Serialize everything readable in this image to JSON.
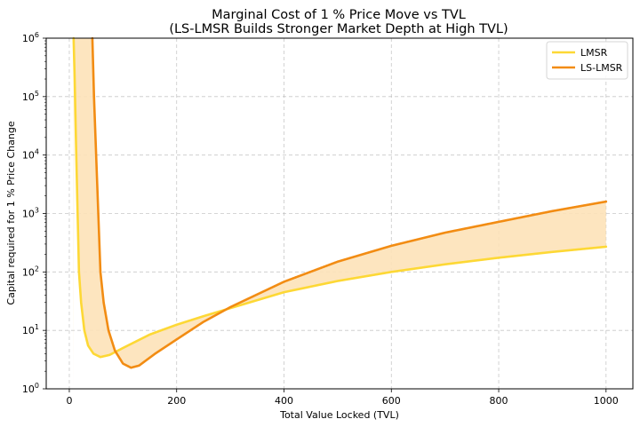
{
  "chart_data": {
    "type": "line",
    "title": "Marginal Cost of 1 % Price Move vs TVL",
    "subtitle": "(LS-LMSR Builds Stronger Market Depth at High TVL)",
    "xlabel": "Total Value Locked (TVL)",
    "ylabel": "Capital required for 1 % Price Change",
    "xlim": [
      -43,
      1050
    ],
    "ylim": [
      1,
      1000000
    ],
    "yscale": "log",
    "grid": true,
    "legend_position": "top-right",
    "x_ticks": [
      0,
      200,
      400,
      600,
      800,
      1000
    ],
    "x_tick_labels": [
      "0",
      "200",
      "400",
      "600",
      "800",
      "1000"
    ],
    "y_ticks": [
      1,
      10,
      100,
      1000,
      10000,
      100000,
      1000000
    ],
    "y_tick_labels": [
      [
        "10",
        "0"
      ],
      [
        "10",
        "1"
      ],
      [
        "10",
        "2"
      ],
      [
        "10",
        "3"
      ],
      [
        "10",
        "4"
      ],
      [
        "10",
        "5"
      ],
      [
        "10",
        "6"
      ]
    ],
    "fill_between": {
      "series": [
        "LMSR",
        "LS-LMSR"
      ],
      "color": "#fde2b8",
      "description": "shaded region between curves"
    },
    "series": [
      {
        "name": "LMSR",
        "color": "#fdd835",
        "x": [
          8,
          10,
          13,
          18,
          22,
          28,
          35,
          45,
          58,
          75,
          100,
          150,
          200,
          250,
          300,
          400,
          500,
          600,
          700,
          800,
          900,
          1000
        ],
        "y": [
          1000000,
          200000,
          10000,
          100,
          30,
          10,
          5.5,
          4.0,
          3.5,
          3.8,
          5.0,
          8.5,
          12.5,
          17.5,
          24,
          45,
          70,
          100,
          135,
          175,
          220,
          270
        ]
      },
      {
        "name": "LS-LMSR",
        "color": "#f28c13",
        "x": [
          43,
          46,
          50,
          54,
          58,
          64,
          73,
          85,
          100,
          115,
          130,
          160,
          200,
          250,
          300,
          400,
          500,
          600,
          700,
          800,
          900,
          1000
        ],
        "y": [
          1000000,
          100000,
          10000,
          1000,
          100,
          30,
          10,
          4.5,
          2.7,
          2.3,
          2.5,
          4.0,
          7.0,
          14,
          25,
          68,
          150,
          280,
          470,
          720,
          1100,
          1600
        ]
      }
    ]
  }
}
